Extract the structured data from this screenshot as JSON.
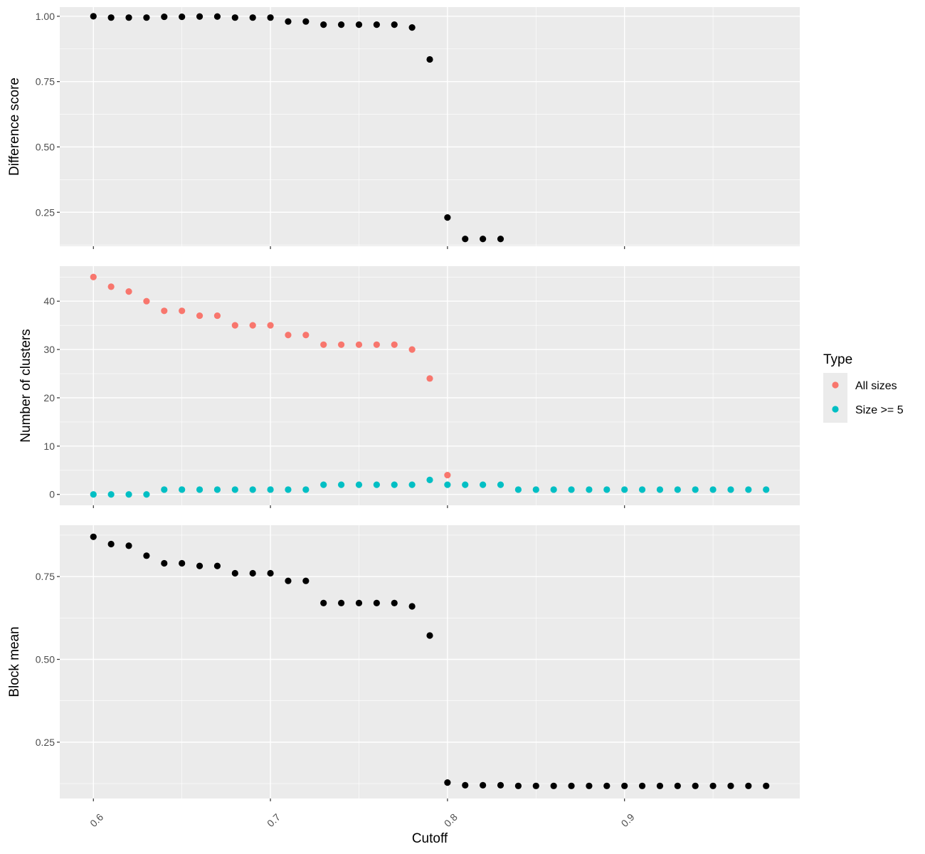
{
  "chart_data": [
    {
      "type": "scatter",
      "ylabel": "Difference score",
      "xlim": [
        0.581,
        0.999
      ],
      "ylim": [
        0.12,
        1.035
      ],
      "x_ticks": [
        "0.6",
        "0.7",
        "0.8",
        "0.9"
      ],
      "y_ticks": [
        "0.25",
        "0.50",
        "0.75",
        "1.00"
      ],
      "series": [
        {
          "color": "#000000",
          "x": [
            0.6,
            0.61,
            0.62,
            0.63,
            0.64,
            0.65,
            0.66,
            0.67,
            0.68,
            0.69,
            0.7,
            0.71,
            0.72,
            0.73,
            0.74,
            0.75,
            0.76,
            0.77,
            0.78,
            0.79,
            0.8,
            0.81,
            0.82,
            0.83
          ],
          "y": [
            1.0,
            0.995,
            0.995,
            0.995,
            0.998,
            0.998,
            0.999,
            0.999,
            0.995,
            0.995,
            0.995,
            0.98,
            0.98,
            0.968,
            0.968,
            0.968,
            0.968,
            0.968,
            0.957,
            0.835,
            0.23,
            0.148,
            0.148,
            0.148
          ]
        }
      ]
    },
    {
      "type": "scatter",
      "ylabel": "Number of clusters",
      "xlim": [
        0.581,
        0.999
      ],
      "ylim": [
        -2.25,
        47.25
      ],
      "x_ticks": [
        "0.6",
        "0.7",
        "0.8",
        "0.9"
      ],
      "y_ticks": [
        "0",
        "10",
        "20",
        "30",
        "40"
      ],
      "legend": {
        "title": "Type",
        "position": "right"
      },
      "series": [
        {
          "name": "All sizes",
          "color": "#F8766D",
          "x": [
            0.6,
            0.61,
            0.62,
            0.63,
            0.64,
            0.65,
            0.66,
            0.67,
            0.68,
            0.69,
            0.7,
            0.71,
            0.72,
            0.73,
            0.74,
            0.75,
            0.76,
            0.77,
            0.78,
            0.79,
            0.8
          ],
          "y": [
            45,
            43,
            42,
            40,
            38,
            38,
            37,
            37,
            35,
            35,
            35,
            33,
            33,
            31,
            31,
            31,
            31,
            31,
            30,
            24,
            4
          ]
        },
        {
          "name": "Size >= 5",
          "color": "#00BFC4",
          "x": [
            0.6,
            0.61,
            0.62,
            0.63,
            0.64,
            0.65,
            0.66,
            0.67,
            0.68,
            0.69,
            0.7,
            0.71,
            0.72,
            0.73,
            0.74,
            0.75,
            0.76,
            0.77,
            0.78,
            0.79,
            0.8,
            0.81,
            0.82,
            0.83,
            0.84,
            0.85,
            0.86,
            0.87,
            0.88,
            0.89,
            0.9,
            0.91,
            0.92,
            0.93,
            0.94,
            0.95,
            0.96,
            0.97,
            0.98
          ],
          "y": [
            0,
            0,
            0,
            0,
            1,
            1,
            1,
            1,
            1,
            1,
            1,
            1,
            1,
            2,
            2,
            2,
            2,
            2,
            2,
            3,
            2,
            2,
            2,
            2,
            1,
            1,
            1,
            1,
            1,
            1,
            1,
            1,
            1,
            1,
            1,
            1,
            1,
            1,
            1
          ]
        }
      ]
    },
    {
      "type": "scatter",
      "xlabel": "Cutoff",
      "ylabel": "Block mean",
      "xlim": [
        0.581,
        0.999
      ],
      "ylim": [
        0.08,
        0.905
      ],
      "x_ticks": [
        "0.6",
        "0.7",
        "0.8",
        "0.9"
      ],
      "y_ticks": [
        "0.25",
        "0.50",
        "0.75"
      ],
      "series": [
        {
          "color": "#000000",
          "x": [
            0.6,
            0.61,
            0.62,
            0.63,
            0.64,
            0.65,
            0.66,
            0.67,
            0.68,
            0.69,
            0.7,
            0.71,
            0.72,
            0.73,
            0.74,
            0.75,
            0.76,
            0.77,
            0.78,
            0.79,
            0.8,
            0.81,
            0.82,
            0.83,
            0.84,
            0.85,
            0.86,
            0.87,
            0.88,
            0.89,
            0.9,
            0.91,
            0.92,
            0.93,
            0.94,
            0.95,
            0.96,
            0.97,
            0.98
          ],
          "y": [
            0.87,
            0.848,
            0.843,
            0.813,
            0.79,
            0.79,
            0.782,
            0.782,
            0.76,
            0.76,
            0.76,
            0.737,
            0.737,
            0.67,
            0.67,
            0.67,
            0.67,
            0.67,
            0.66,
            0.572,
            0.128,
            0.12,
            0.12,
            0.12,
            0.118,
            0.118,
            0.118,
            0.118,
            0.118,
            0.118,
            0.118,
            0.118,
            0.118,
            0.118,
            0.118,
            0.118,
            0.118,
            0.118,
            0.118
          ]
        }
      ]
    }
  ]
}
